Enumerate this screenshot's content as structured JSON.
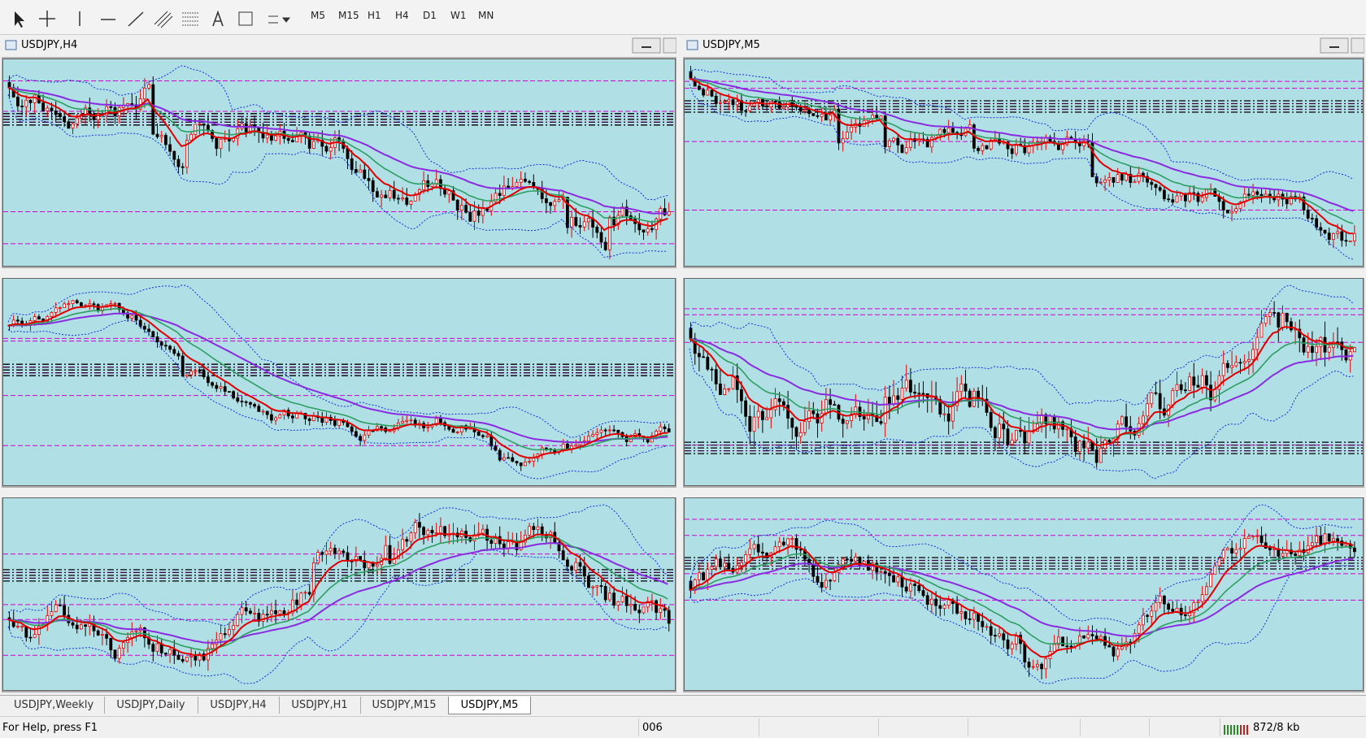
{
  "toolbar": {
    "timeframes": [
      "M5",
      "M15",
      "H1",
      "H4",
      "D1",
      "W1",
      "MN"
    ]
  },
  "windows": [
    {
      "title": "USDJPY,H4"
    },
    {
      "title": "USDJPY,M5"
    }
  ],
  "tabs": [
    "USDJPY,Weekly",
    "USDJPY,Daily",
    "USDJPY,H4",
    "USDJPY,H1",
    "USDJPY,M15",
    "USDJPY,M5"
  ],
  "status": {
    "help": "For Help, press F1",
    "profile": "006",
    "traffic": "872/8 kb"
  }
}
